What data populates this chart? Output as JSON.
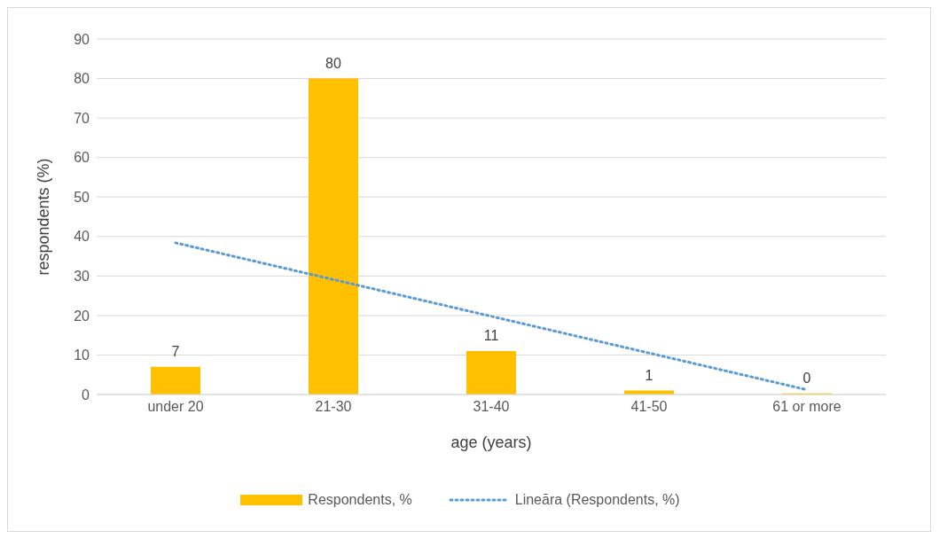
{
  "chart_data": {
    "type": "bar",
    "categories": [
      "under 20",
      "21-30",
      "31-40",
      "41-50",
      "61 or more"
    ],
    "series": [
      {
        "name": "Respondents, %",
        "color": "#ffc000",
        "values": [
          7,
          80,
          11,
          1,
          0.3
        ],
        "value_labels": [
          "7",
          "80",
          "11",
          "1",
          "0"
        ]
      },
      {
        "name": "Lineāra (Respondents, %)",
        "type": "line",
        "color": "#5b9bd5",
        "line_style": "dotted",
        "marker": "none",
        "values": [
          38.4,
          29.1,
          19.8,
          10.5,
          1.2
        ]
      }
    ],
    "xlabel": "age (years)",
    "ylabel": "respondents (%)",
    "ylim": [
      0,
      90
    ],
    "yticks": [
      0,
      10,
      20,
      30,
      40,
      50,
      60,
      70,
      80,
      90
    ],
    "grid": "y",
    "legend": "bottom"
  }
}
